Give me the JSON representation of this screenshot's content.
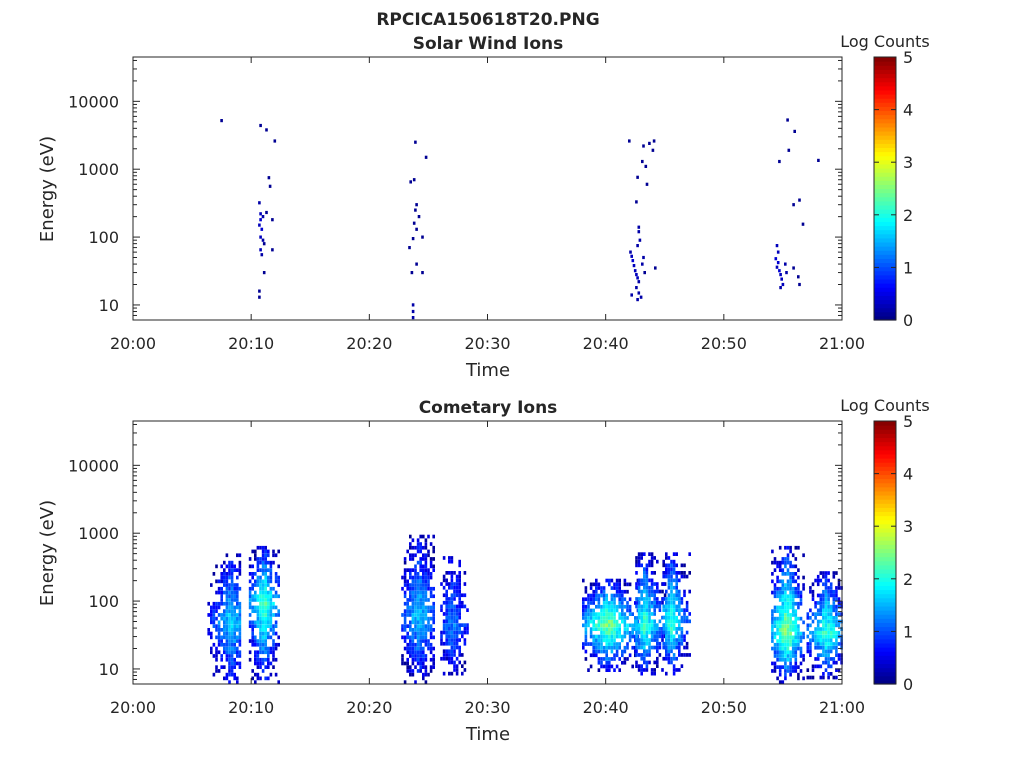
{
  "figure_title": "RPCICA150618T20.PNG",
  "colormap": [
    "#00007f",
    "#0000ff",
    "#007fff",
    "#00ffff",
    "#7fff7f",
    "#ffff00",
    "#ff7f00",
    "#ff0000",
    "#7f0000"
  ],
  "chart_data": [
    {
      "type": "heatmap",
      "title": "Solar Wind Ions",
      "xlabel": "Time",
      "ylabel": "Energy (eV)",
      "x_ticks": [
        "20:00",
        "20:10",
        "20:20",
        "20:30",
        "20:40",
        "20:50",
        "21:00"
      ],
      "xlim_minutes": [
        0,
        60
      ],
      "y_ticks": [
        "10",
        "100",
        "1000",
        "10000"
      ],
      "y_scale": "log",
      "ylim_eV": [
        6,
        45000
      ],
      "colorbar": {
        "label": "Log Counts",
        "ticks": [
          "0",
          "1",
          "2",
          "3",
          "4",
          "5"
        ],
        "range": [
          0,
          5
        ]
      },
      "cells": [
        [
          7.5,
          5200,
          0.1
        ],
        [
          10.8,
          4400,
          0.1
        ],
        [
          11.3,
          3800,
          0.1
        ],
        [
          12.0,
          2600,
          0.1
        ],
        [
          11.5,
          750,
          0.1
        ],
        [
          11.6,
          560,
          0.1
        ],
        [
          10.7,
          320,
          0.2
        ],
        [
          10.8,
          220,
          0.3
        ],
        [
          10.8,
          180,
          0.4
        ],
        [
          10.7,
          150,
          0.3
        ],
        [
          10.9,
          130,
          0.4
        ],
        [
          10.8,
          100,
          0.3
        ],
        [
          11.0,
          90,
          0.2
        ],
        [
          10.8,
          65,
          0.3
        ],
        [
          10.9,
          55,
          0.2
        ],
        [
          11.1,
          80,
          0.1
        ],
        [
          11.0,
          200,
          0.2
        ],
        [
          11.3,
          230,
          0.1
        ],
        [
          11.8,
          180,
          0.1
        ],
        [
          11.8,
          65,
          0.1
        ],
        [
          11.1,
          30,
          0.1
        ],
        [
          10.7,
          16,
          0.1
        ],
        [
          10.7,
          13,
          0.1
        ],
        [
          23.9,
          2500,
          0.1
        ],
        [
          24.8,
          1500,
          0.1
        ],
        [
          23.5,
          650,
          0.1
        ],
        [
          23.8,
          700,
          0.1
        ],
        [
          24.0,
          300,
          0.1
        ],
        [
          23.9,
          250,
          0.1
        ],
        [
          24.2,
          200,
          0.1
        ],
        [
          23.8,
          160,
          0.1
        ],
        [
          24.0,
          130,
          0.1
        ],
        [
          23.7,
          95,
          0.1
        ],
        [
          24.5,
          100,
          0.1
        ],
        [
          23.4,
          70,
          0.1
        ],
        [
          24.0,
          40,
          0.1
        ],
        [
          23.6,
          30,
          0.1
        ],
        [
          24.5,
          30,
          0.1
        ],
        [
          23.7,
          10,
          0.2
        ],
        [
          23.7,
          8,
          0.2
        ],
        [
          23.7,
          6.5,
          0.2
        ],
        [
          42.0,
          2600,
          0.1
        ],
        [
          43.2,
          2200,
          0.1
        ],
        [
          43.7,
          2400,
          0.1
        ],
        [
          44.0,
          1900,
          0.1
        ],
        [
          44.1,
          2600,
          0.1
        ],
        [
          43.1,
          1300,
          0.1
        ],
        [
          43.4,
          1100,
          0.1
        ],
        [
          42.7,
          760,
          0.1
        ],
        [
          43.5,
          600,
          0.1
        ],
        [
          42.6,
          330,
          0.1
        ],
        [
          42.8,
          140,
          0.2
        ],
        [
          42.8,
          120,
          0.2
        ],
        [
          42.9,
          90,
          0.2
        ],
        [
          42.7,
          75,
          0.2
        ],
        [
          42.1,
          60,
          0.2
        ],
        [
          42.2,
          52,
          0.3
        ],
        [
          42.3,
          45,
          0.4
        ],
        [
          42.4,
          38,
          0.3
        ],
        [
          42.5,
          32,
          0.3
        ],
        [
          42.6,
          28,
          0.3
        ],
        [
          42.7,
          25,
          0.3
        ],
        [
          42.8,
          22,
          0.2
        ],
        [
          42.6,
          18,
          0.2
        ],
        [
          42.8,
          15,
          0.2
        ],
        [
          42.2,
          14,
          0.2
        ],
        [
          42.7,
          12,
          0.2
        ],
        [
          43.1,
          40,
          0.2
        ],
        [
          43.3,
          30,
          0.1
        ],
        [
          43.2,
          50,
          0.2
        ],
        [
          44.2,
          35,
          0.1
        ],
        [
          43.0,
          13,
          0.2
        ],
        [
          55.4,
          5300,
          0.1
        ],
        [
          56.0,
          3600,
          0.1
        ],
        [
          55.5,
          1900,
          0.1
        ],
        [
          54.7,
          1300,
          0.1
        ],
        [
          58.0,
          1350,
          0.1
        ],
        [
          56.4,
          350,
          0.1
        ],
        [
          55.9,
          300,
          0.1
        ],
        [
          56.7,
          155,
          0.1
        ],
        [
          54.5,
          75,
          0.3
        ],
        [
          54.6,
          60,
          0.3
        ],
        [
          54.4,
          48,
          0.4
        ],
        [
          54.6,
          42,
          0.4
        ],
        [
          54.5,
          36,
          0.3
        ],
        [
          54.7,
          32,
          0.4
        ],
        [
          54.8,
          28,
          0.3
        ],
        [
          54.9,
          24,
          0.3
        ],
        [
          55.0,
          20,
          0.3
        ],
        [
          54.8,
          18,
          0.2
        ],
        [
          55.2,
          40,
          0.2
        ],
        [
          55.3,
          30,
          0.2
        ],
        [
          55.9,
          35,
          0.1
        ],
        [
          56.3,
          26,
          0.1
        ],
        [
          56.4,
          20,
          0.1
        ]
      ]
    },
    {
      "type": "heatmap",
      "title": "Cometary Ions",
      "xlabel": "Time",
      "ylabel": "Energy (eV)",
      "x_ticks": [
        "20:00",
        "20:10",
        "20:20",
        "20:30",
        "20:40",
        "20:50",
        "21:00"
      ],
      "xlim_minutes": [
        0,
        60
      ],
      "y_ticks": [
        "10",
        "100",
        "1000",
        "10000"
      ],
      "y_scale": "log",
      "ylim_eV": [
        6,
        45000
      ],
      "colorbar": {
        "label": "Log Counts",
        "ticks": [
          "0",
          "1",
          "2",
          "3",
          "4",
          "5"
        ],
        "range": [
          0,
          5
        ]
      },
      "bursts": [
        {
          "t_start": 6.3,
          "t_end": 9.1,
          "e_low": 6,
          "e_high": 500,
          "peak_t": 8.2,
          "peak_e": 45,
          "peak": 1.5
        },
        {
          "t_start": 9.8,
          "t_end": 12.3,
          "e_low": 6,
          "e_high": 600,
          "peak_t": 11.0,
          "peak_e": 90,
          "peak": 2.1
        },
        {
          "t_start": 22.7,
          "t_end": 25.5,
          "e_low": 6,
          "e_high": 850,
          "peak_t": 24.1,
          "peak_e": 55,
          "peak": 1.4
        },
        {
          "t_start": 26.0,
          "t_end": 28.2,
          "e_low": 8,
          "e_high": 450,
          "peak_t": 27.0,
          "peak_e": 40,
          "peak": 1.0
        },
        {
          "t_start": 38.0,
          "t_end": 42.7,
          "e_low": 9,
          "e_high": 200,
          "peak_t": 40.1,
          "peak_e": 42,
          "peak": 2.3
        },
        {
          "t_start": 42.5,
          "t_end": 45.0,
          "e_low": 8,
          "e_high": 500,
          "peak_t": 43.2,
          "peak_e": 40,
          "peak": 2.0
        },
        {
          "t_start": 44.8,
          "t_end": 47.0,
          "e_low": 8,
          "e_high": 480,
          "peak_t": 45.5,
          "peak_e": 45,
          "peak": 2.0
        },
        {
          "t_start": 54.0,
          "t_end": 56.8,
          "e_low": 6,
          "e_high": 600,
          "peak_t": 55.2,
          "peak_e": 32,
          "peak": 2.4
        },
        {
          "t_start": 57.0,
          "t_end": 60.0,
          "e_low": 7,
          "e_high": 250,
          "peak_t": 58.6,
          "peak_e": 32,
          "peak": 2.0
        }
      ]
    }
  ]
}
